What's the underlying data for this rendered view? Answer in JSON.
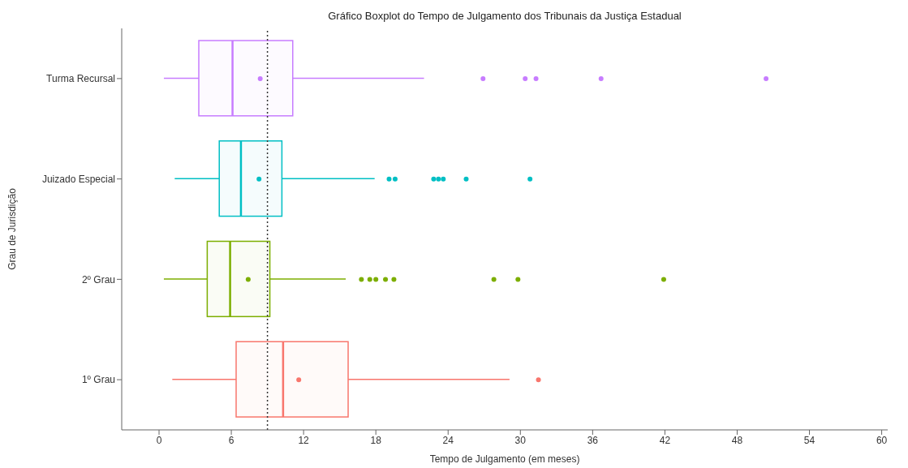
{
  "chart_data": {
    "type": "box",
    "orientation": "horizontal",
    "title": "Gráfico Boxplot do Tempo de Julgamento dos Tribunais da Justiça Estadual",
    "xlabel": "Tempo de Julgamento (em meses)",
    "ylabel": "Grau de Jurisdição",
    "categories": [
      "Turma Recursal",
      "Juizado Especial",
      "2º Grau",
      "1º Grau"
    ],
    "colors": [
      "#c77cff",
      "#00bfc4",
      "#7cae00",
      "#f8766d"
    ],
    "boxes": [
      {
        "low": 0.4,
        "q1": 3.3,
        "median": 6.1,
        "q3": 11.1,
        "high": 22.0,
        "mean": 8.4,
        "outliers": [
          26.9,
          30.4,
          31.3,
          36.7,
          50.4
        ]
      },
      {
        "low": 1.3,
        "q1": 5.0,
        "median": 6.8,
        "q3": 10.2,
        "high": 17.9,
        "mean": 8.3,
        "outliers": [
          19.1,
          19.6,
          22.8,
          23.2,
          23.6,
          25.5,
          30.8
        ]
      },
      {
        "low": 0.4,
        "q1": 4.0,
        "median": 5.9,
        "q3": 9.2,
        "high": 15.5,
        "mean": 7.4,
        "outliers": [
          16.8,
          17.5,
          18.0,
          18.8,
          19.5,
          27.8,
          29.8,
          41.9
        ]
      },
      {
        "low": 1.1,
        "q1": 6.4,
        "median": 10.3,
        "q3": 15.7,
        "high": 29.1,
        "mean": 11.6,
        "outliers": [
          31.5
        ]
      }
    ],
    "xlim": [
      -3.1,
      60.5
    ],
    "xticks": [
      0,
      6,
      12,
      18,
      24,
      30,
      36,
      42,
      48,
      54,
      60
    ],
    "ref_lines": [
      {
        "axis": "x",
        "value": 9,
        "color": "#333333",
        "line_style": "dotted"
      }
    ],
    "grid": false
  }
}
